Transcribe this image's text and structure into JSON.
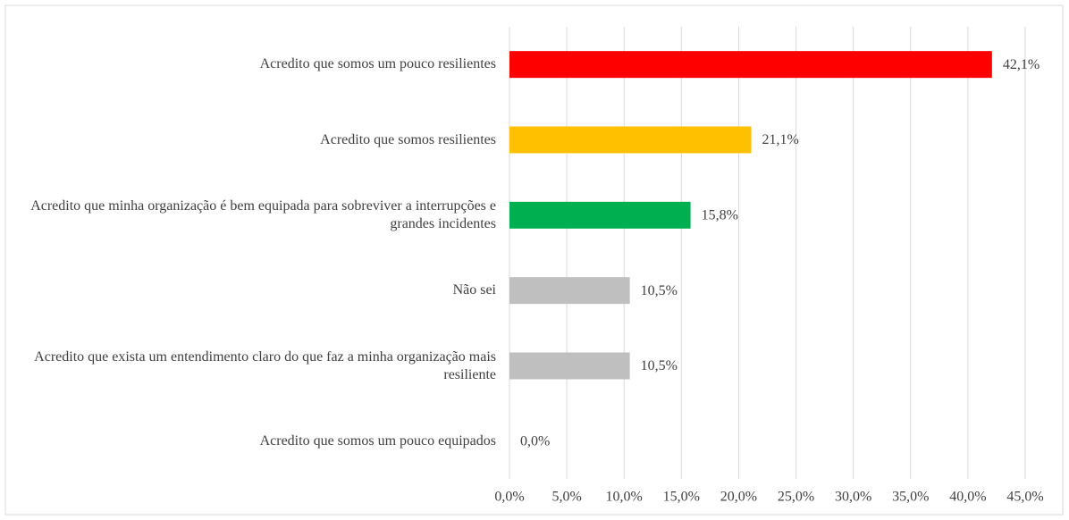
{
  "chart_data": {
    "type": "barh",
    "categories": [
      "Acredito que somos um pouco resilientes",
      "Acredito que somos resilientes",
      "Acredito que minha organização é bem equipada para sobreviver a interrupções e grandes incidentes",
      "Não sei",
      "Acredito que exista um entendimento claro do que faz a minha organização mais resiliente",
      "Acredito que somos um pouco equipados"
    ],
    "values": [
      42.1,
      21.1,
      15.8,
      10.5,
      10.5,
      0
    ],
    "value_labels": [
      "42,1%",
      "21,1%",
      "15,8%",
      "10,5%",
      "10,5%",
      "0,0%"
    ],
    "colors": [
      "#ff0000",
      "#ffc000",
      "#00b050",
      "#bfbfbf",
      "#bfbfbf",
      "#bfbfbf"
    ],
    "xlim": [
      0,
      45
    ],
    "xticks": [
      {
        "value": 0,
        "label": "0,0%"
      },
      {
        "value": 5,
        "label": "5,0%"
      },
      {
        "value": 10,
        "label": "10,0%"
      },
      {
        "value": 15,
        "label": "15,0%"
      },
      {
        "value": 20,
        "label": "20,0%"
      },
      {
        "value": 25,
        "label": "25,0%"
      },
      {
        "value": 30,
        "label": "30,0%"
      },
      {
        "value": 35,
        "label": "35,0%"
      },
      {
        "value": 40,
        "label": "40,0%"
      },
      {
        "value": 45,
        "label": "45,0%"
      }
    ],
    "grid": true
  }
}
